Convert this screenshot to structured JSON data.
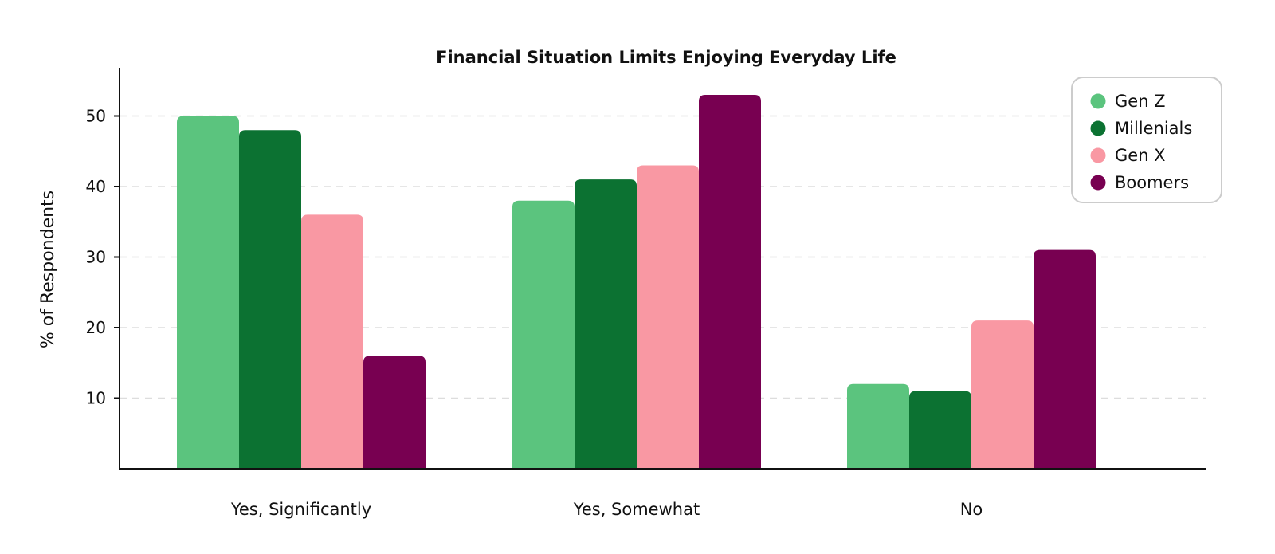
{
  "chart_data": {
    "type": "bar",
    "title": "Financial Situation Limits Enjoying Everyday Life",
    "xlabel": "",
    "ylabel": "% of Respondents",
    "categories": [
      "Yes, Significantly",
      "Yes, Somewhat",
      "No"
    ],
    "series": [
      {
        "name": "Gen Z",
        "color": "#5bc47e",
        "values": [
          50,
          38,
          12
        ]
      },
      {
        "name": "Millenials",
        "color": "#0c7232",
        "values": [
          48,
          41,
          11
        ]
      },
      {
        "name": "Gen X",
        "color": "#f998a3",
        "values": [
          36,
          43,
          21
        ]
      },
      {
        "name": "Boomers",
        "color": "#780051",
        "values": [
          16,
          53,
          31
        ]
      }
    ],
    "yticks": [
      10,
      20,
      30,
      40,
      50
    ],
    "ylim": [
      0,
      57
    ],
    "grid": true,
    "legend_position": "top-right"
  }
}
